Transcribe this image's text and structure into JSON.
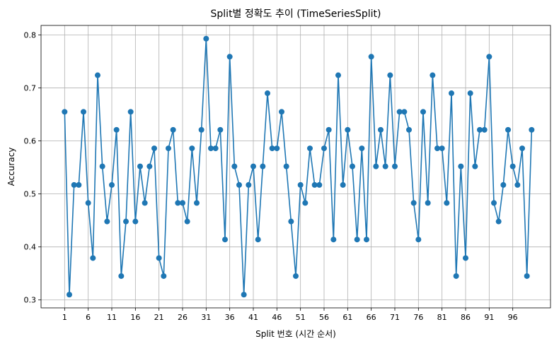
{
  "chart_data": {
    "type": "line",
    "title": "Split별 정확도 추이 (TimeSeriesSplit)",
    "xlabel": "Split 번호 (시간 순서)",
    "ylabel": "Accuracy",
    "xlim": [
      -4,
      104
    ],
    "ylim": [
      0.285,
      0.818
    ],
    "xticks": [
      1,
      6,
      11,
      16,
      21,
      26,
      31,
      36,
      41,
      46,
      51,
      56,
      61,
      66,
      71,
      76,
      81,
      86,
      91,
      96
    ],
    "yticks": [
      0.3,
      0.4,
      0.5,
      0.6,
      0.7,
      0.8
    ],
    "ytick_labels": [
      "0.3",
      "0.4",
      "0.5",
      "0.6",
      "0.7",
      "0.8"
    ],
    "grid": true,
    "series": [
      {
        "color": "#1f77b4",
        "marker": "circle",
        "x": [
          1,
          2,
          3,
          4,
          5,
          6,
          7,
          8,
          9,
          10,
          11,
          12,
          13,
          14,
          15,
          16,
          17,
          18,
          19,
          20,
          21,
          22,
          23,
          24,
          25,
          26,
          27,
          28,
          29,
          30,
          31,
          32,
          33,
          34,
          35,
          36,
          37,
          38,
          39,
          40,
          41,
          42,
          43,
          44,
          45,
          46,
          47,
          48,
          49,
          50,
          51,
          52,
          53,
          54,
          55,
          56,
          57,
          58,
          59,
          60,
          61,
          62,
          63,
          64,
          65,
          66,
          67,
          68,
          69,
          70,
          71,
          72,
          73,
          74,
          75,
          76,
          77,
          78,
          79,
          80,
          81,
          82,
          83,
          84,
          85,
          86,
          87,
          88,
          89,
          90,
          91,
          92,
          93,
          94,
          95,
          96,
          97,
          98,
          99,
          100
        ],
        "values": [
          0.655,
          0.31,
          0.517,
          0.517,
          0.655,
          0.483,
          0.379,
          0.724,
          0.552,
          0.448,
          0.517,
          0.621,
          0.345,
          0.448,
          0.655,
          0.448,
          0.552,
          0.483,
          0.552,
          0.586,
          0.379,
          0.345,
          0.586,
          0.621,
          0.483,
          0.483,
          0.448,
          0.586,
          0.483,
          0.621,
          0.793,
          0.586,
          0.586,
          0.621,
          0.414,
          0.759,
          0.552,
          0.517,
          0.31,
          0.517,
          0.552,
          0.414,
          0.552,
          0.69,
          0.586,
          0.586,
          0.655,
          0.552,
          0.448,
          0.345,
          0.517,
          0.483,
          0.586,
          0.517,
          0.517,
          0.586,
          0.621,
          0.414,
          0.724,
          0.517,
          0.621,
          0.552,
          0.414,
          0.586,
          0.414,
          0.759,
          0.552,
          0.621,
          0.552,
          0.724,
          0.552,
          0.655,
          0.655,
          0.621,
          0.483,
          0.414,
          0.655,
          0.483,
          0.724,
          0.586,
          0.586,
          0.483,
          0.69,
          0.345,
          0.552,
          0.379,
          0.69,
          0.552,
          0.621,
          0.621,
          0.759,
          0.483,
          0.448,
          0.517,
          0.621,
          0.552,
          0.517,
          0.586,
          0.345,
          0.621
        ]
      }
    ]
  }
}
